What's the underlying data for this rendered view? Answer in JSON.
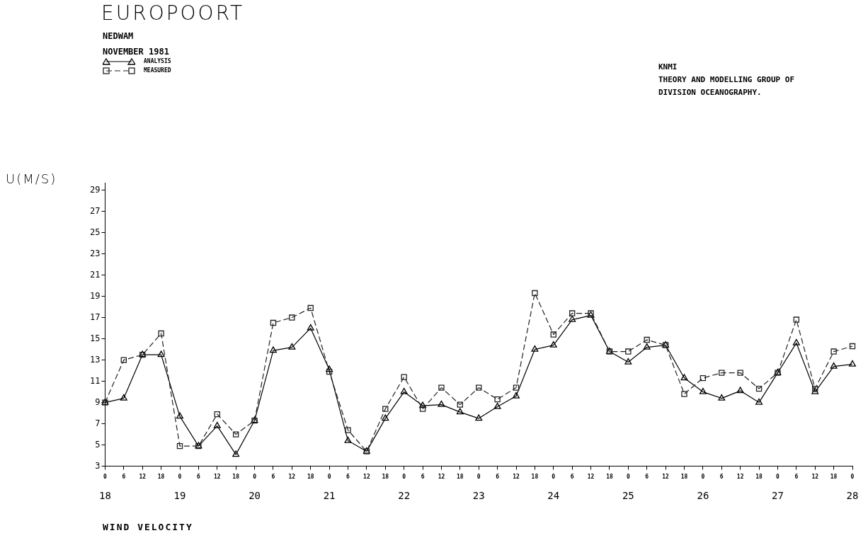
{
  "chart_data": {
    "type": "line",
    "title": "EUROPOORT",
    "subtitle": "NEDWAM",
    "ylabel": "U(M/S)",
    "annotations": [
      "NOVEMBER 1981",
      "KNMI",
      "THEORY AND MODELLING GROUP OF",
      "DIVISION OCEANOGRAPHY.",
      "WIND VELOCITY"
    ],
    "x": [
      "1981-11-18T00:00",
      "1981-11-18T06:00",
      "1981-11-18T12:00",
      "1981-11-18T18:00",
      "1981-11-19T00:00",
      "1981-11-19T06:00",
      "1981-11-19T12:00",
      "1981-11-19T18:00",
      "1981-11-20T00:00",
      "1981-11-20T06:00",
      "1981-11-20T12:00",
      "1981-11-20T18:00",
      "1981-11-21T00:00",
      "1981-11-21T06:00",
      "1981-11-21T12:00",
      "1981-11-21T18:00",
      "1981-11-22T00:00",
      "1981-11-22T06:00",
      "1981-11-22T12:00",
      "1981-11-22T18:00",
      "1981-11-23T00:00",
      "1981-11-23T06:00",
      "1981-11-23T12:00",
      "1981-11-23T18:00",
      "1981-11-24T00:00",
      "1981-11-24T06:00",
      "1981-11-24T12:00",
      "1981-11-24T18:00",
      "1981-11-25T00:00",
      "1981-11-25T06:00",
      "1981-11-25T12:00",
      "1981-11-25T18:00",
      "1981-11-26T00:00",
      "1981-11-26T06:00",
      "1981-11-26T12:00",
      "1981-11-26T18:00",
      "1981-11-27T00:00",
      "1981-11-27T06:00",
      "1981-11-27T12:00",
      "1981-11-27T18:00",
      "1981-11-28T00:00"
    ],
    "series": [
      {
        "name": "ANALYSIS",
        "color": "#000000",
        "marker": "triangle",
        "line_style": "solid",
        "values": [
          9.0,
          9.4,
          13.5,
          13.5,
          7.7,
          4.9,
          6.8,
          4.1,
          7.3,
          13.9,
          14.2,
          16.0,
          12.1,
          5.4,
          4.4,
          7.5,
          10.0,
          8.7,
          8.8,
          8.1,
          7.5,
          8.6,
          9.6,
          14.0,
          14.4,
          16.8,
          17.2,
          13.8,
          12.8,
          14.2,
          14.4,
          11.3,
          10.0,
          9.4,
          10.1,
          9.0,
          11.8,
          14.6,
          10.0,
          12.4,
          12.6
        ]
      },
      {
        "name": "MEASURED",
        "color": "#222222",
        "marker": "square",
        "line_style": "dashed",
        "values": [
          9.0,
          13.0,
          13.5,
          15.5,
          4.9,
          4.9,
          7.9,
          6.0,
          7.3,
          16.5,
          17.0,
          17.9,
          11.9,
          6.4,
          4.4,
          8.4,
          11.4,
          8.4,
          10.4,
          8.8,
          10.4,
          9.3,
          10.4,
          19.3,
          15.4,
          17.4,
          17.4,
          13.8,
          13.8,
          14.9,
          14.4,
          9.8,
          11.3,
          11.8,
          11.8,
          10.3,
          11.8,
          16.8,
          10.3,
          13.8,
          14.3
        ]
      }
    ],
    "xlim": [
      "1981-11-18T00:00",
      "1981-11-28T00:00"
    ],
    "xticks": [
      {
        "value": "1981-11-18T00:00",
        "label": "0"
      },
      {
        "value": "1981-11-18T06:00",
        "label": "6"
      },
      {
        "value": "1981-11-18T12:00",
        "label": "12"
      },
      {
        "value": "1981-11-18T18:00",
        "label": "18"
      },
      {
        "value": "1981-11-19T00:00",
        "label": "0"
      },
      {
        "value": "1981-11-19T06:00",
        "label": "6"
      },
      {
        "value": "1981-11-19T12:00",
        "label": "12"
      },
      {
        "value": "1981-11-19T18:00",
        "label": "18"
      },
      {
        "value": "1981-11-20T00:00",
        "label": "0"
      },
      {
        "value": "1981-11-20T06:00",
        "label": "6"
      },
      {
        "value": "1981-11-20T12:00",
        "label": "12"
      },
      {
        "value": "1981-11-20T18:00",
        "label": "18"
      },
      {
        "value": "1981-11-21T00:00",
        "label": "0"
      },
      {
        "value": "1981-11-21T06:00",
        "label": "6"
      },
      {
        "value": "1981-11-21T12:00",
        "label": "12"
      },
      {
        "value": "1981-11-21T18:00",
        "label": "18"
      },
      {
        "value": "1981-11-22T00:00",
        "label": "0"
      },
      {
        "value": "1981-11-22T06:00",
        "label": "6"
      },
      {
        "value": "1981-11-22T12:00",
        "label": "12"
      },
      {
        "value": "1981-11-22T18:00",
        "label": "18"
      },
      {
        "value": "1981-11-23T00:00",
        "label": "0"
      },
      {
        "value": "1981-11-23T06:00",
        "label": "6"
      },
      {
        "value": "1981-11-23T12:00",
        "label": "12"
      },
      {
        "value": "1981-11-23T18:00",
        "label": "18"
      },
      {
        "value": "1981-11-24T00:00",
        "label": "0"
      },
      {
        "value": "1981-11-24T06:00",
        "label": "6"
      },
      {
        "value": "1981-11-24T12:00",
        "label": "12"
      },
      {
        "value": "1981-11-24T18:00",
        "label": "18"
      },
      {
        "value": "1981-11-25T00:00",
        "label": "0"
      },
      {
        "value": "1981-11-25T06:00",
        "label": "6"
      },
      {
        "value": "1981-11-25T12:00",
        "label": "12"
      },
      {
        "value": "1981-11-25T18:00",
        "label": "18"
      },
      {
        "value": "1981-11-26T00:00",
        "label": "0"
      },
      {
        "value": "1981-11-26T06:00",
        "label": "6"
      },
      {
        "value": "1981-11-26T12:00",
        "label": "12"
      },
      {
        "value": "1981-11-26T18:00",
        "label": "18"
      },
      {
        "value": "1981-11-27T00:00",
        "label": "0"
      },
      {
        "value": "1981-11-27T06:00",
        "label": "6"
      },
      {
        "value": "1981-11-27T12:00",
        "label": "12"
      },
      {
        "value": "1981-11-27T18:00",
        "label": "18"
      },
      {
        "value": "1981-11-28T00:00",
        "label": "0"
      }
    ],
    "x2lim": [
      "1981-11-18T00:00",
      "1981-11-28T00:00"
    ],
    "x2ticks": [
      {
        "value": "1981-11-18",
        "label": "18"
      },
      {
        "value": "1981-11-19",
        "label": "19"
      },
      {
        "value": "1981-11-20",
        "label": "20"
      },
      {
        "value": "1981-11-21",
        "label": "21"
      },
      {
        "value": "1981-11-22",
        "label": "22"
      },
      {
        "value": "1981-11-23",
        "label": "23"
      },
      {
        "value": "1981-11-24",
        "label": "24"
      },
      {
        "value": "1981-11-25",
        "label": "25"
      },
      {
        "value": "1981-11-26",
        "label": "26"
      },
      {
        "value": "1981-11-27",
        "label": "27"
      },
      {
        "value": "1981-11-28",
        "label": "28"
      }
    ],
    "ylim": [
      3,
      29.7
    ],
    "yticks": [
      3,
      5,
      7,
      9,
      11,
      13,
      15,
      17,
      19,
      21,
      23,
      25,
      27,
      29
    ],
    "grid": false,
    "legend": "top left"
  }
}
